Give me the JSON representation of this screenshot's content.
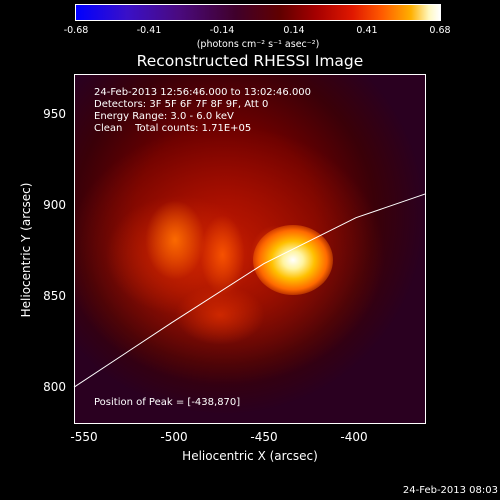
{
  "colorbar": {
    "labels": [
      "-0.68",
      "-0.41",
      "-0.14",
      "0.14",
      "0.41",
      "0.68"
    ],
    "unit": "(photons cm⁻² s⁻¹ asec⁻²)"
  },
  "title": "Reconstructed RHESSI Image",
  "info": {
    "line1": "24-Feb-2013 12:56:46.000 to 13:02:46.000",
    "line2": "Detectors: 3F 5F 6F 7F 8F 9F, Att 0",
    "line3": "Energy Range: 3.0 - 6.0 keV",
    "line4": "Clean    Total counts: 1.71E+05",
    "peak": "Position of Peak = [-438,870]"
  },
  "axes": {
    "xlabel": "Heliocentric X (arcsec)",
    "ylabel": "Heliocentric Y (arcsec)",
    "xticks": [
      "-550",
      "-500",
      "-450",
      "-400"
    ],
    "yticks": [
      "950",
      "900",
      "850",
      "800"
    ],
    "xrange": [
      -553,
      -362
    ],
    "yrange": [
      775,
      965
    ]
  },
  "limb_curve": [
    [
      -553,
      795
    ],
    [
      -500,
      830
    ],
    [
      -450,
      862
    ],
    [
      -400,
      887
    ],
    [
      -362,
      900
    ]
  ],
  "timestamp": "24-Feb-2013 08:03"
}
